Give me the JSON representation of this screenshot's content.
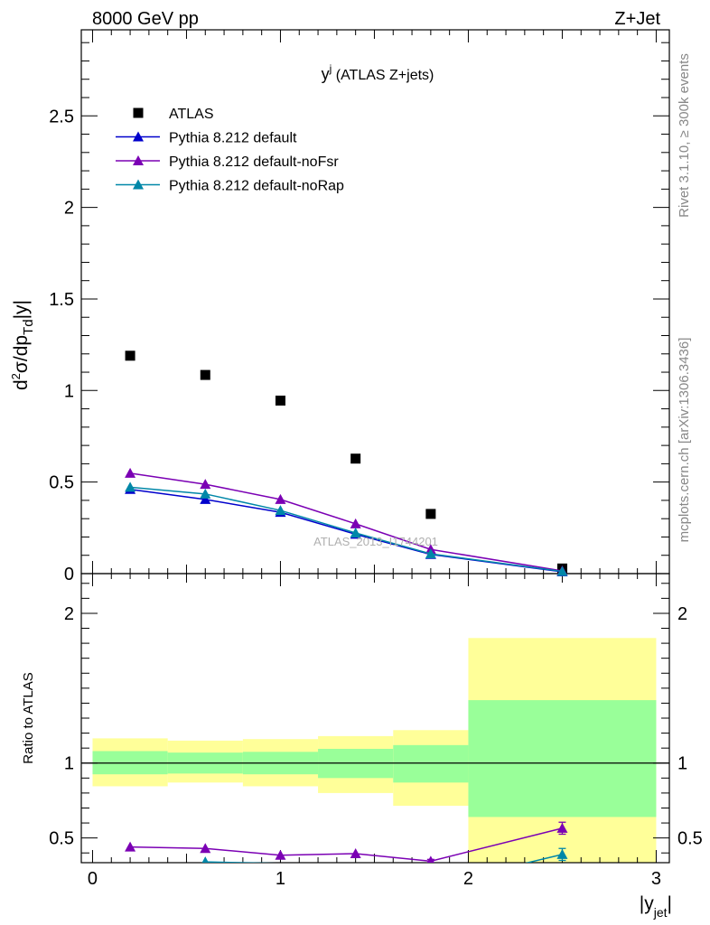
{
  "header": {
    "left": "8000 GeV pp",
    "right": "Z+Jet"
  },
  "plot_title": {
    "main": "y",
    "sup": "j",
    "rest": " (ATLAS Z+jets)"
  },
  "side_labels": {
    "rivet": "Rivet 3.1.10, ≥ 300k events",
    "mcplots": "mcplots.cern.ch [arXiv:1306.3436]"
  },
  "watermark": "ATLAS_2013_I1744201",
  "colors": {
    "data": "#000000",
    "default": "#0000cc",
    "noFsr": "#7b00b4",
    "noRap": "#0087a8",
    "band_outer": "#ffff99",
    "band_inner": "#99ff99"
  },
  "chart_data": [
    {
      "type": "scatter",
      "panel": "main",
      "ylabel": "d²σ/dp_Td|y|",
      "xlim": [
        -0.06,
        3.07
      ],
      "ylim": [
        0,
        2.97
      ],
      "yticks": [
        0,
        0.5,
        1,
        1.5,
        2,
        2.5
      ],
      "yticklabels": [
        "0",
        "0.5",
        "1",
        "1.5",
        "2",
        "2.5"
      ],
      "legend_position": "top-left",
      "bins": [
        [
          0,
          0.4
        ],
        [
          0.4,
          0.8
        ],
        [
          0.8,
          1.2
        ],
        [
          1.2,
          1.6
        ],
        [
          1.6,
          2.0
        ],
        [
          2.0,
          3.0
        ]
      ],
      "x": [
        0.2,
        0.6,
        1.0,
        1.4,
        1.8,
        2.5
      ],
      "series": [
        {
          "name": "ATLAS",
          "color": "#000000",
          "marker": "square",
          "values": [
            1.19,
            1.085,
            0.945,
            0.628,
            0.326,
            0.028
          ]
        },
        {
          "name": "Pythia 8.212 default",
          "color": "#0000cc",
          "marker": "triangle",
          "values": [
            0.46,
            0.405,
            0.335,
            0.215,
            0.105,
            0.01
          ]
        },
        {
          "name": "Pythia 8.212 default-noFsr",
          "color": "#7b00b4",
          "marker": "triangle",
          "values": [
            0.548,
            0.488,
            0.405,
            0.272,
            0.132,
            0.015
          ]
        },
        {
          "name": "Pythia 8.212 default-noRap",
          "color": "#0087a8",
          "marker": "triangle",
          "values": [
            0.472,
            0.435,
            0.345,
            0.222,
            0.108,
            0.012
          ]
        }
      ]
    },
    {
      "type": "line",
      "panel": "ratio",
      "ylabel": "Ratio to ATLAS",
      "xlabel": "|y_jet|",
      "xlim": [
        -0.06,
        3.07
      ],
      "ylim": [
        0.335,
        2.265
      ],
      "xticks": [
        0,
        1,
        2,
        3
      ],
      "xticklabels": [
        "0",
        "1",
        "2",
        "3"
      ],
      "yticks": [
        0.5,
        1,
        2
      ],
      "yticklabels": [
        "0.5",
        "1",
        "2"
      ],
      "bands": [
        {
          "range": [
            0,
            0.4
          ],
          "outer": [
            0.845,
            1.165
          ],
          "inner": [
            0.925,
            1.08
          ]
        },
        {
          "range": [
            0.4,
            0.8
          ],
          "outer": [
            0.87,
            1.15
          ],
          "inner": [
            0.93,
            1.07
          ]
        },
        {
          "range": [
            0.8,
            1.2
          ],
          "outer": [
            0.845,
            1.16
          ],
          "inner": [
            0.925,
            1.075
          ]
        },
        {
          "range": [
            1.2,
            1.6
          ],
          "outer": [
            0.8,
            1.18
          ],
          "inner": [
            0.9,
            1.095
          ]
        },
        {
          "range": [
            1.6,
            2.0
          ],
          "outer": [
            0.715,
            1.22
          ],
          "inner": [
            0.87,
            1.12
          ]
        },
        {
          "range": [
            2.0,
            3.0
          ],
          "outer": [
            0.335,
            1.835
          ],
          "inner": [
            0.64,
            1.42
          ]
        }
      ],
      "series": [
        {
          "name": "Pythia 8.212 default-noFsr",
          "color": "#7b00b4",
          "x": [
            0.2,
            0.6,
            1.0,
            1.4,
            1.8,
            2.5
          ],
          "values": [
            0.44,
            0.43,
            0.385,
            0.395,
            0.345,
            0.565
          ],
          "errors": [
            0,
            0,
            0,
            0,
            0.012,
            0.04
          ]
        },
        {
          "name": "Pythia 8.212 default-noRap",
          "color": "#0087a8",
          "x": [
            0.6,
            2.2,
            2.5
          ],
          "values": [
            0.34,
            0.3,
            0.39
          ],
          "errors": [
            0,
            0,
            0.04
          ]
        }
      ]
    }
  ]
}
